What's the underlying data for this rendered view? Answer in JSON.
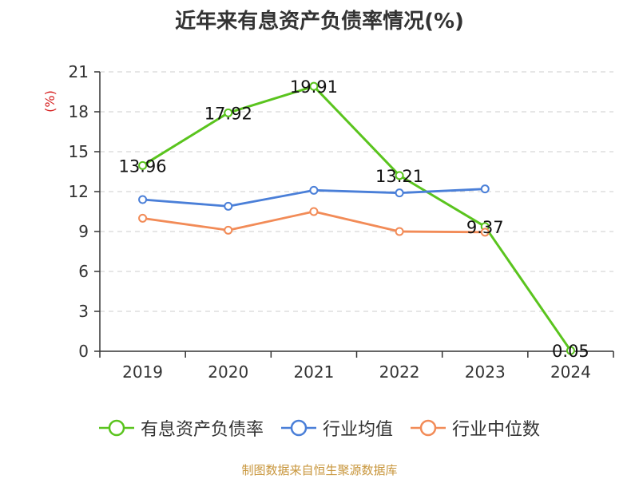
{
  "title": "近年来有息资产负债率情况(%)",
  "source": "制图数据来自恒生聚源数据库",
  "chart_data": {
    "type": "line",
    "title": "近年来有息资产负债率情况(%)",
    "ylabel": "(%)",
    "xlabel": "",
    "categories": [
      "2019",
      "2020",
      "2021",
      "2022",
      "2023",
      "2024"
    ],
    "ylim": [
      0,
      21
    ],
    "yticks": [
      0,
      3,
      6,
      9,
      12,
      15,
      18,
      21
    ],
    "grid": true,
    "legend_position": "bottom",
    "series": [
      {
        "name": "有息资产负债率",
        "color": "#5ac41e",
        "values": [
          13.96,
          17.92,
          19.91,
          13.21,
          9.37,
          0.05
        ],
        "labels": [
          "13.96",
          "17.92",
          "19.91",
          "13.21",
          "9.37",
          "0.05"
        ]
      },
      {
        "name": "行业均值",
        "color": "#4a7fd8",
        "values": [
          11.4,
          10.9,
          12.1,
          11.9,
          12.2,
          null
        ]
      },
      {
        "name": "行业中位数",
        "color": "#f28b57",
        "values": [
          10.0,
          9.1,
          10.5,
          9.0,
          8.95,
          null
        ]
      }
    ]
  }
}
